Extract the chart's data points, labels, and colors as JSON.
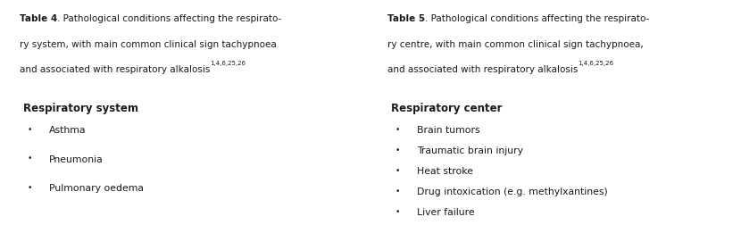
{
  "fig_width": 8.3,
  "fig_height": 2.53,
  "dpi": 100,
  "bg_color": "#ffffff",
  "panel_bg": "#e8eaf0",
  "header_bg": "#f0921e",
  "header_text_color": "#1a1a1a",
  "body_text_color": "#1a1a1a",
  "panels": [
    {
      "header_lines": [
        {
          "bold": "Table 4",
          "normal": ". Pathological conditions affecting the respirato-"
        },
        {
          "bold": "",
          "normal": "ry system, with main common clinical sign tachypnoea"
        },
        {
          "bold": "",
          "normal": "and associated with respiratory alkalosis",
          "super": "1,4,6,25,26"
        }
      ],
      "body_title": "Respiratory system",
      "items": [
        "Asthma",
        "Pneumonia",
        "Pulmonary oedema"
      ]
    },
    {
      "header_lines": [
        {
          "bold": "Table 5",
          "normal": ". Pathological conditions affecting the respirato-"
        },
        {
          "bold": "",
          "normal": "ry centre, with main common clinical sign tachypnoea,"
        },
        {
          "bold": "",
          "normal": "and associated with respiratory alkalosis",
          "super": "1,4,6,25,26"
        }
      ],
      "body_title": "Respiratory center",
      "items": [
        "Brain tumors",
        "Traumatic brain injury",
        "Heat stroke",
        "Drug intoxication (e.g. methylxantines)",
        "Liver failure"
      ]
    }
  ]
}
